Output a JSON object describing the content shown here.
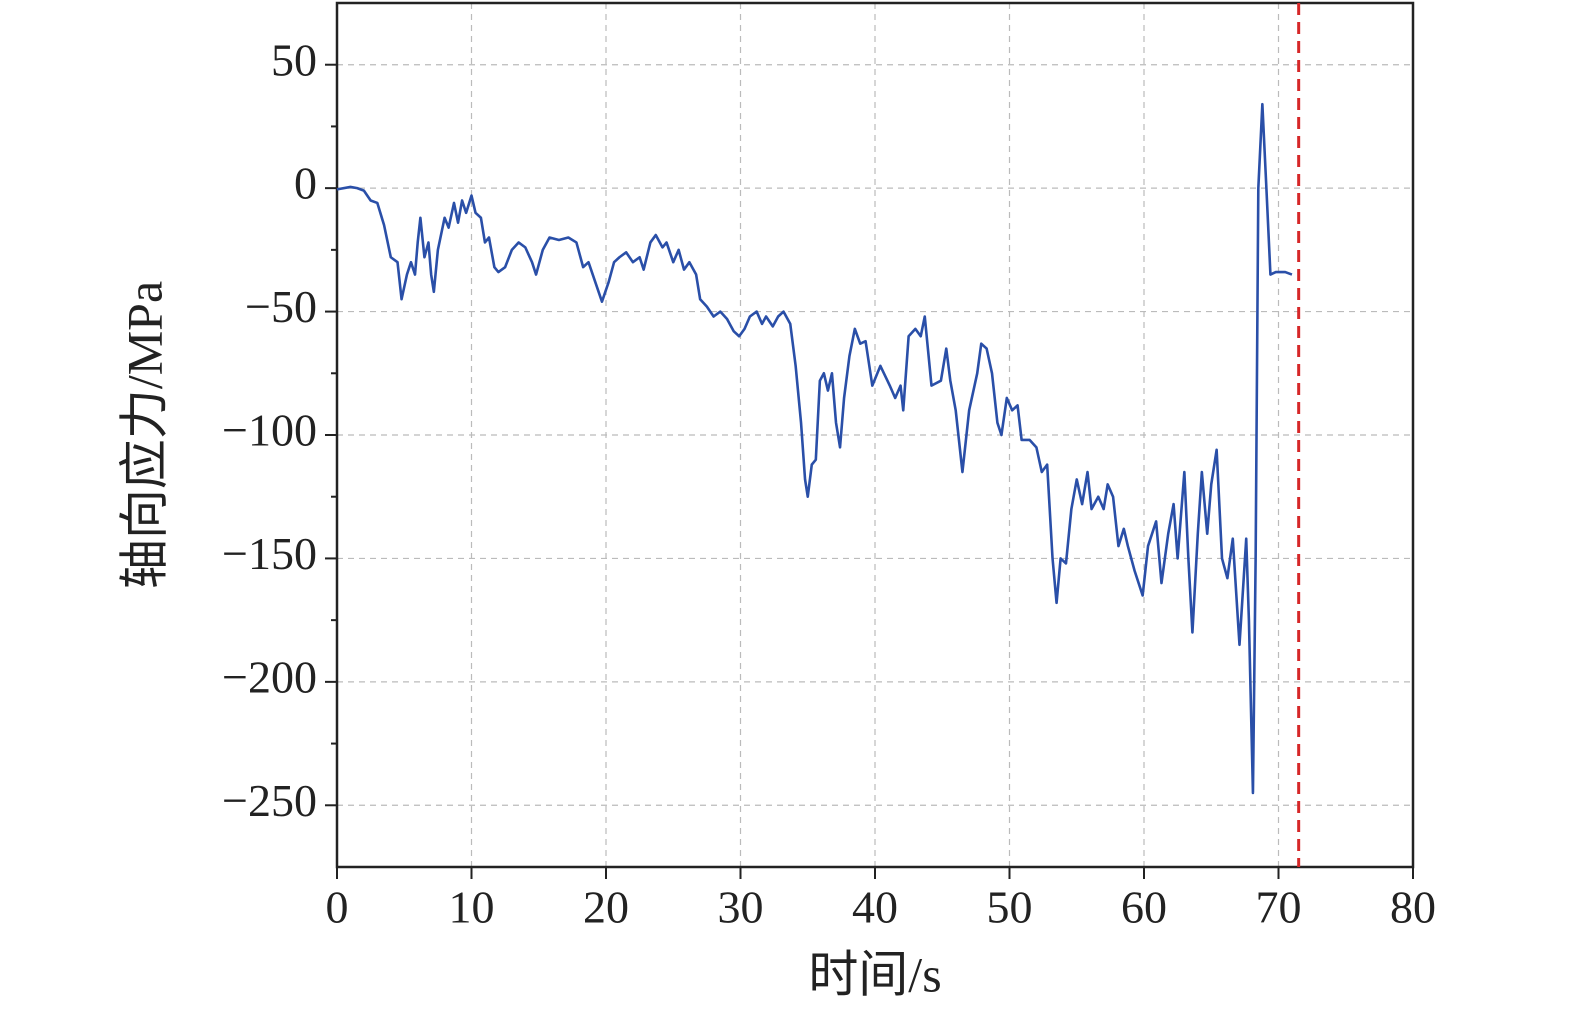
{
  "chart_data": {
    "type": "line",
    "xlabel": "时间/s",
    "ylabel": "轴向应力/MPa",
    "xlim": [
      0,
      80
    ],
    "xticks": [
      0,
      10,
      20,
      30,
      40,
      50,
      60,
      70,
      80
    ],
    "ylim": [
      -275,
      75
    ],
    "yticks": [
      {
        "value": -250,
        "label": "−250"
      },
      {
        "value": -200,
        "label": "−200"
      },
      {
        "value": -150,
        "label": "−150"
      },
      {
        "value": -100,
        "label": "−100"
      },
      {
        "value": -50,
        "label": "−50"
      },
      0,
      50
    ],
    "yminorticks": [
      -225,
      -175,
      -125,
      -75,
      -25,
      25
    ],
    "grid": true,
    "vline": {
      "x": 71.5,
      "color": "#d62728"
    },
    "series": [
      {
        "color": "#2a4fa8",
        "x": [
          0,
          1,
          1.5,
          2,
          2.5,
          3,
          3.5,
          4,
          4.5,
          4.8,
          5.2,
          5.5,
          5.8,
          6,
          6.2,
          6.5,
          6.8,
          7.0,
          7.2,
          7.5,
          8,
          8.3,
          8.7,
          9,
          9.3,
          9.6,
          10,
          10.3,
          10.7,
          11,
          11.3,
          11.7,
          12,
          12.5,
          13,
          13.5,
          14,
          14.5,
          14.8,
          15.3,
          15.8,
          16.5,
          17.2,
          17.8,
          18.3,
          18.7,
          19.2,
          19.7,
          20.2,
          20.6,
          21,
          21.5,
          22,
          22.5,
          22.8,
          23.3,
          23.7,
          24.2,
          24.5,
          25,
          25.4,
          25.8,
          26.2,
          26.7,
          27,
          27.5,
          28,
          28.5,
          29,
          29.5,
          29.9,
          30.3,
          30.7,
          31.2,
          31.6,
          31.9,
          32.4,
          32.8,
          33.2,
          33.7,
          34.1,
          34.5,
          34.8,
          35.0,
          35.3,
          35.6,
          35.9,
          36.2,
          36.5,
          36.8,
          37.1,
          37.4,
          37.7,
          38.1,
          38.5,
          38.9,
          39.3,
          39.8,
          40.4,
          41.1,
          41.5,
          41.9,
          42.1,
          42.5,
          43.0,
          43.4,
          43.7,
          44.2,
          44.9,
          45.3,
          45.6,
          46.0,
          46.5,
          47.0,
          47.6,
          47.9,
          48.3,
          48.7,
          49.1,
          49.4,
          49.8,
          50.2,
          50.6,
          50.9,
          51.5,
          52,
          52.4,
          52.8,
          53.2,
          53.5,
          53.8,
          54.2,
          54.6,
          55,
          55.4,
          55.8,
          56.1,
          56.6,
          57,
          57.3,
          57.7,
          58.1,
          58.5,
          58.8,
          59.3,
          59.9,
          60.3,
          60.9,
          61.3,
          61.8,
          62.2,
          62.5,
          63,
          63.3,
          63.6,
          64,
          64.3,
          64.7,
          65,
          65.4,
          65.8,
          66.2,
          66.6,
          67.1,
          67.6,
          67.8,
          68.1,
          68.3,
          68.5,
          68.8,
          69.1,
          69.4,
          69.8,
          70.5,
          71
        ],
        "values": [
          -0.5,
          0.5,
          0,
          -1,
          -5,
          -6,
          -15,
          -28,
          -30,
          -45,
          -35,
          -30,
          -35,
          -22,
          -12,
          -28,
          -22,
          -35,
          -42,
          -25,
          -12,
          -16,
          -6,
          -14,
          -5,
          -10,
          -3,
          -10,
          -12,
          -22,
          -20,
          -32,
          -34,
          -32,
          -25,
          -22,
          -24,
          -30,
          -35,
          -25,
          -20,
          -21,
          -20,
          -22,
          -32,
          -30,
          -38,
          -46,
          -38,
          -30,
          -28,
          -26,
          -30,
          -28,
          -33,
          -22,
          -19,
          -24,
          -22,
          -30,
          -25,
          -33,
          -30,
          -35,
          -45,
          -48,
          -52,
          -50,
          -53,
          -58,
          -60,
          -57,
          -52,
          -50,
          -55,
          -52,
          -56,
          -52,
          -50,
          -55,
          -72,
          -95,
          -118,
          -125,
          -112,
          -110,
          -78,
          -75,
          -82,
          -75,
          -95,
          -105,
          -85,
          -68,
          -57,
          -63,
          -62,
          -80,
          -72,
          -80,
          -85,
          -80,
          -90,
          -60,
          -57,
          -60,
          -52,
          -80,
          -78,
          -65,
          -78,
          -90,
          -115,
          -90,
          -75,
          -63,
          -65,
          -75,
          -95,
          -100,
          -85,
          -90,
          -88,
          -102,
          -102,
          -105,
          -115,
          -112,
          -150,
          -168,
          -150,
          -152,
          -130,
          -118,
          -128,
          -115,
          -130,
          -125,
          -130,
          -120,
          -125,
          -145,
          -138,
          -145,
          -155,
          -165,
          -145,
          -135,
          -160,
          -140,
          -128,
          -150,
          -115,
          -150,
          -180,
          -140,
          -115,
          -140,
          -120,
          -106,
          -150,
          -158,
          -142,
          -185,
          -142,
          -175,
          -245,
          -150,
          0,
          34,
          0,
          -35,
          -34,
          -34,
          -35
        ]
      }
    ]
  }
}
